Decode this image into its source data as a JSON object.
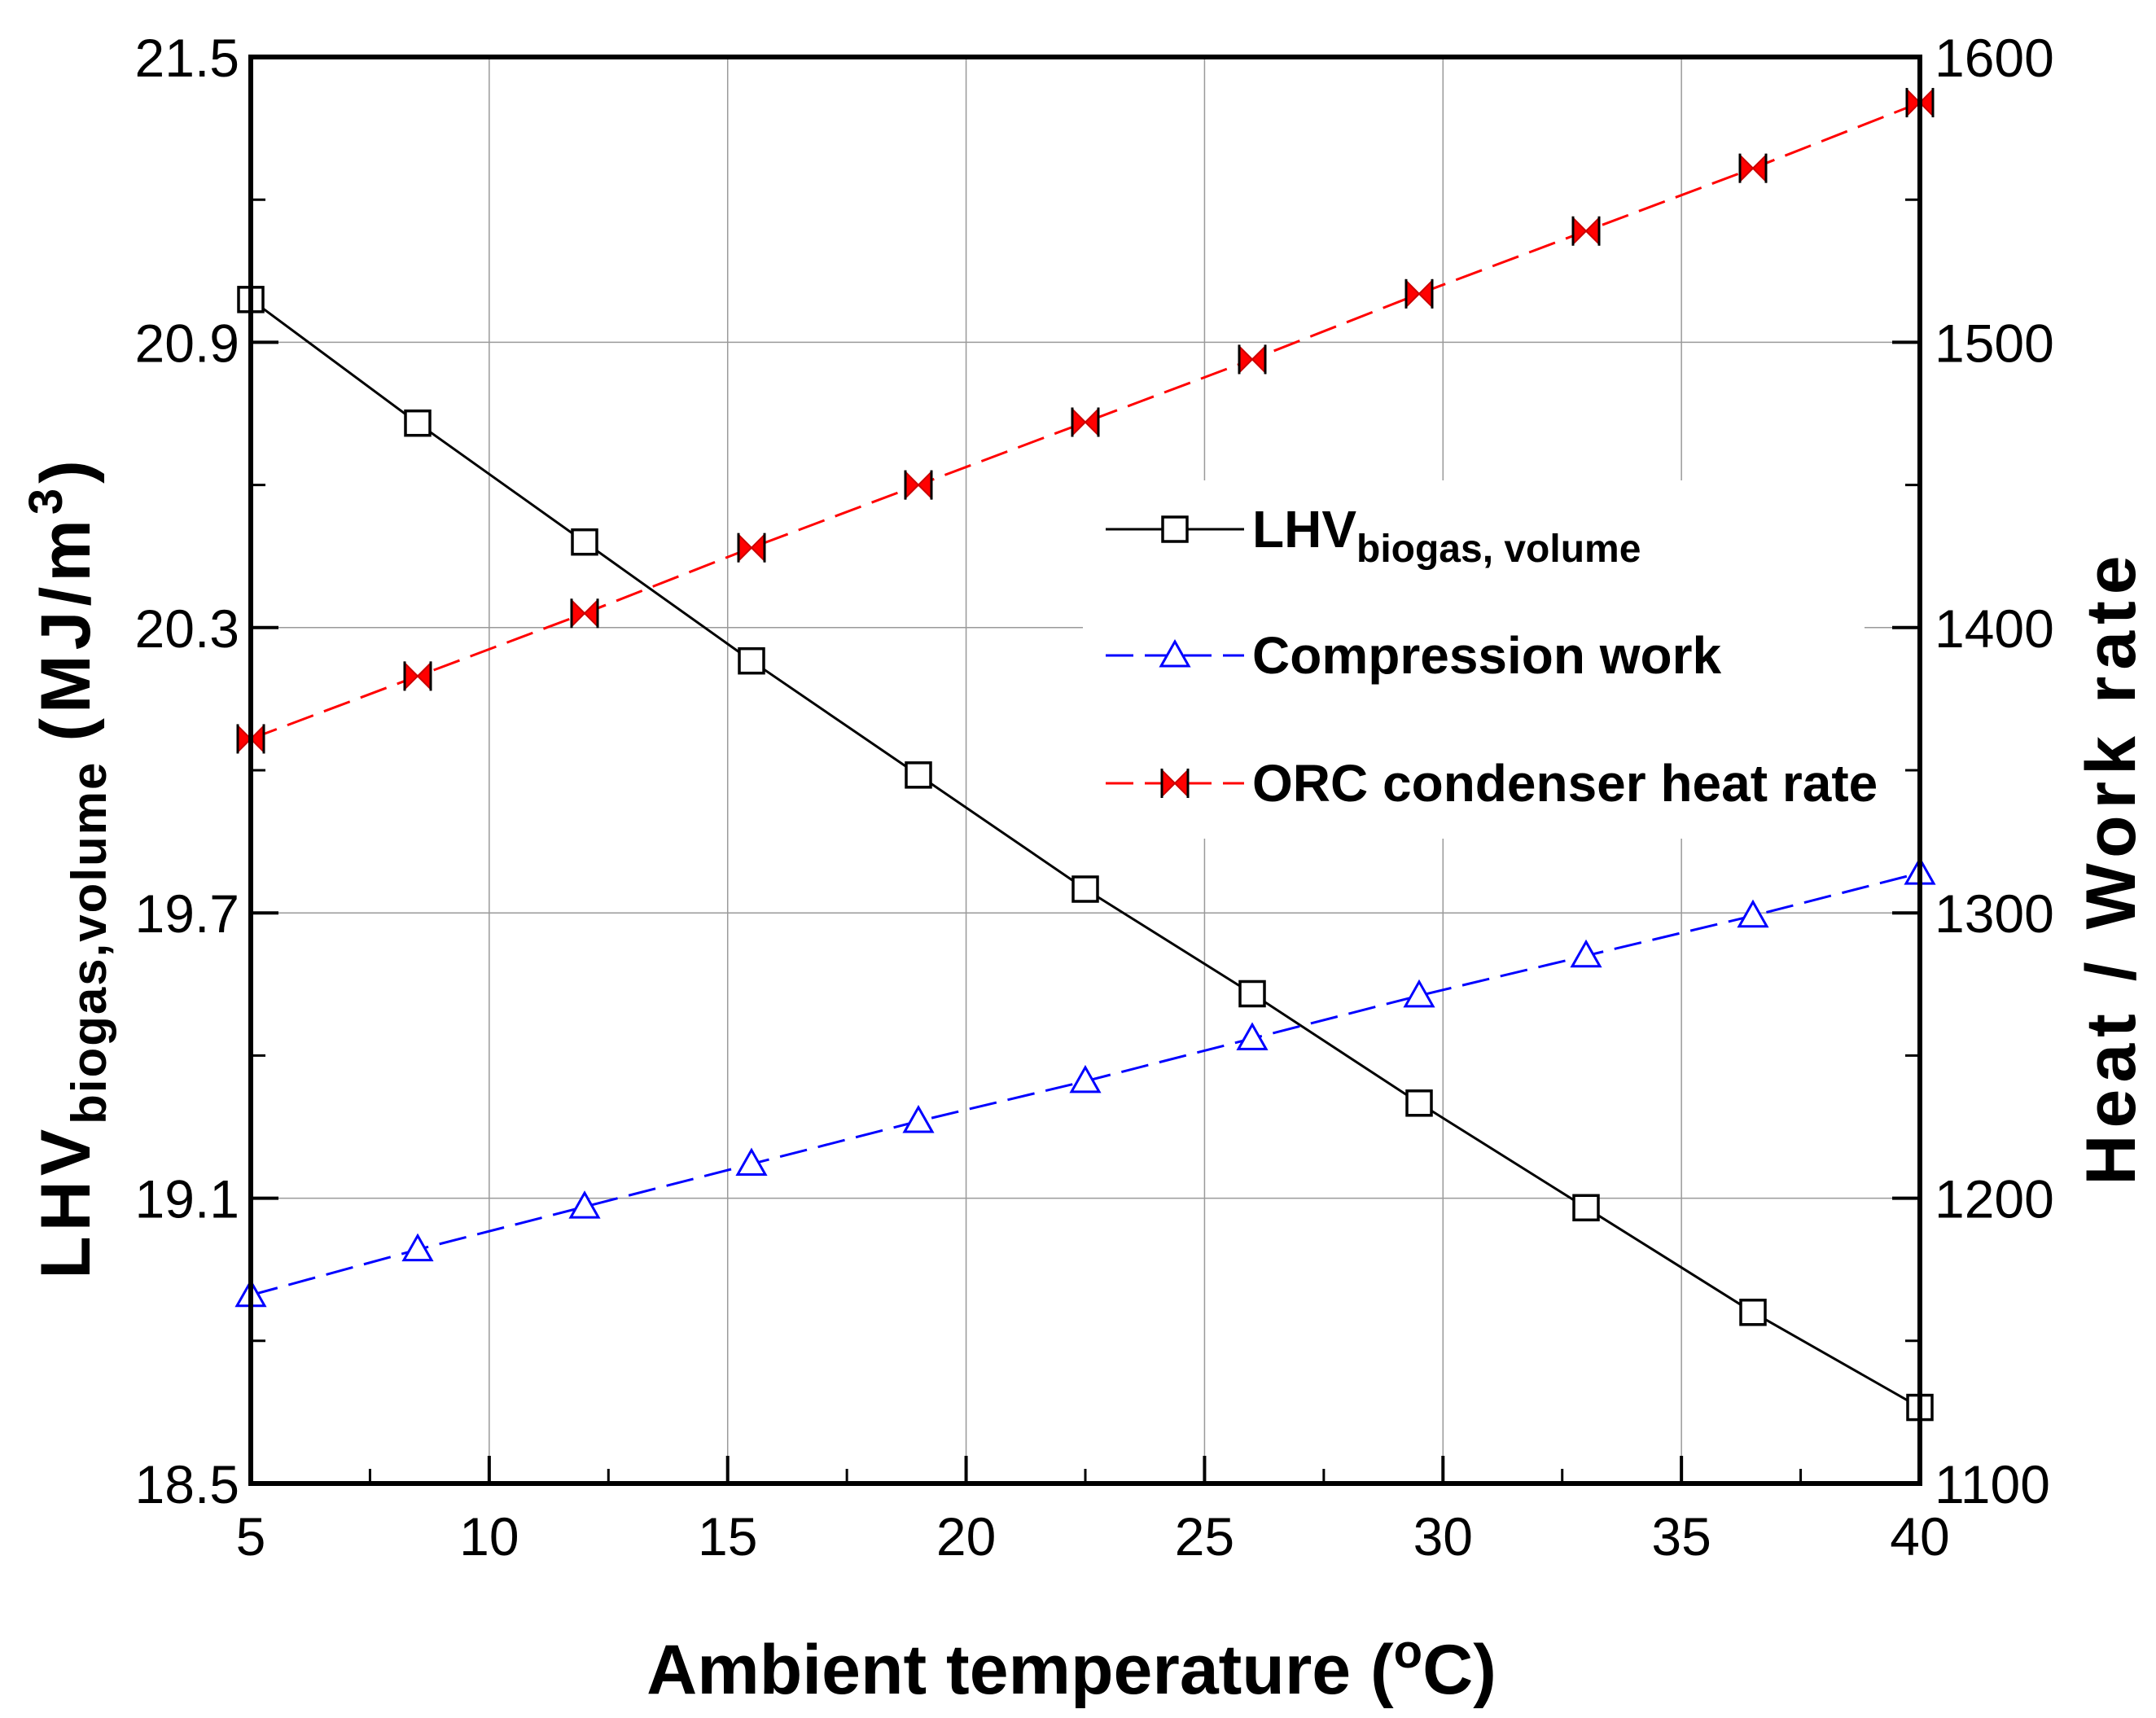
{
  "chart_data": {
    "type": "line",
    "title": "",
    "xlabel": "Ambient temperature (",
    "xlabel_sup": "o",
    "xlabel_tail": "C)",
    "ylabel_left_prefix": "LHV",
    "ylabel_left_sub": "biogas,volume",
    "ylabel_left_unit": "(MJ/m",
    "ylabel_left_sup": "3",
    "ylabel_left_close": ")",
    "ylabel_right": "Heat / Work rate",
    "xlim": [
      5,
      40
    ],
    "ylim_left": [
      18.5,
      21.5
    ],
    "ylim_right": [
      1100,
      1600
    ],
    "x_ticks": [
      "5",
      "10",
      "15",
      "20",
      "25",
      "30",
      "35",
      "40"
    ],
    "y_left_ticks": [
      "18.5",
      "19.1",
      "19.7",
      "20.3",
      "20.9",
      "21.5"
    ],
    "y_right_ticks": [
      "1100",
      "1200",
      "1300",
      "1400",
      "1500",
      "1600"
    ],
    "x": [
      5,
      8.5,
      12,
      15.5,
      19,
      22.5,
      26,
      29.5,
      33,
      36.5,
      40
    ],
    "series": [
      {
        "name": "LHV_biogas, volume",
        "legend_main": "LHV",
        "legend_sub": "biogas, volume",
        "axis": "left",
        "color": "#000000",
        "marker": "square",
        "dash": "solid",
        "values": [
          20.99,
          20.73,
          20.48,
          20.23,
          19.99,
          19.75,
          19.53,
          19.3,
          19.08,
          18.86,
          18.66
        ]
      },
      {
        "name": "Compression work",
        "legend_main": "Compression work",
        "legend_sub": "",
        "axis": "right",
        "color": "#0000ff",
        "marker": "triangle",
        "dash": "dashed",
        "values": [
          1166,
          1182,
          1197,
          1212,
          1227,
          1241,
          1256,
          1271,
          1285,
          1299,
          1314
        ]
      },
      {
        "name": "ORC condenser heat rate",
        "legend_main": "ORC condenser heat rate",
        "legend_sub": "",
        "axis": "right",
        "color": "#ff0000",
        "marker": "bowtie",
        "dash": "dashed",
        "values": [
          1361,
          1383,
          1405,
          1428,
          1450,
          1472,
          1494,
          1517,
          1539,
          1561,
          1584
        ]
      }
    ],
    "legend_position": "right-center",
    "grid": true
  }
}
